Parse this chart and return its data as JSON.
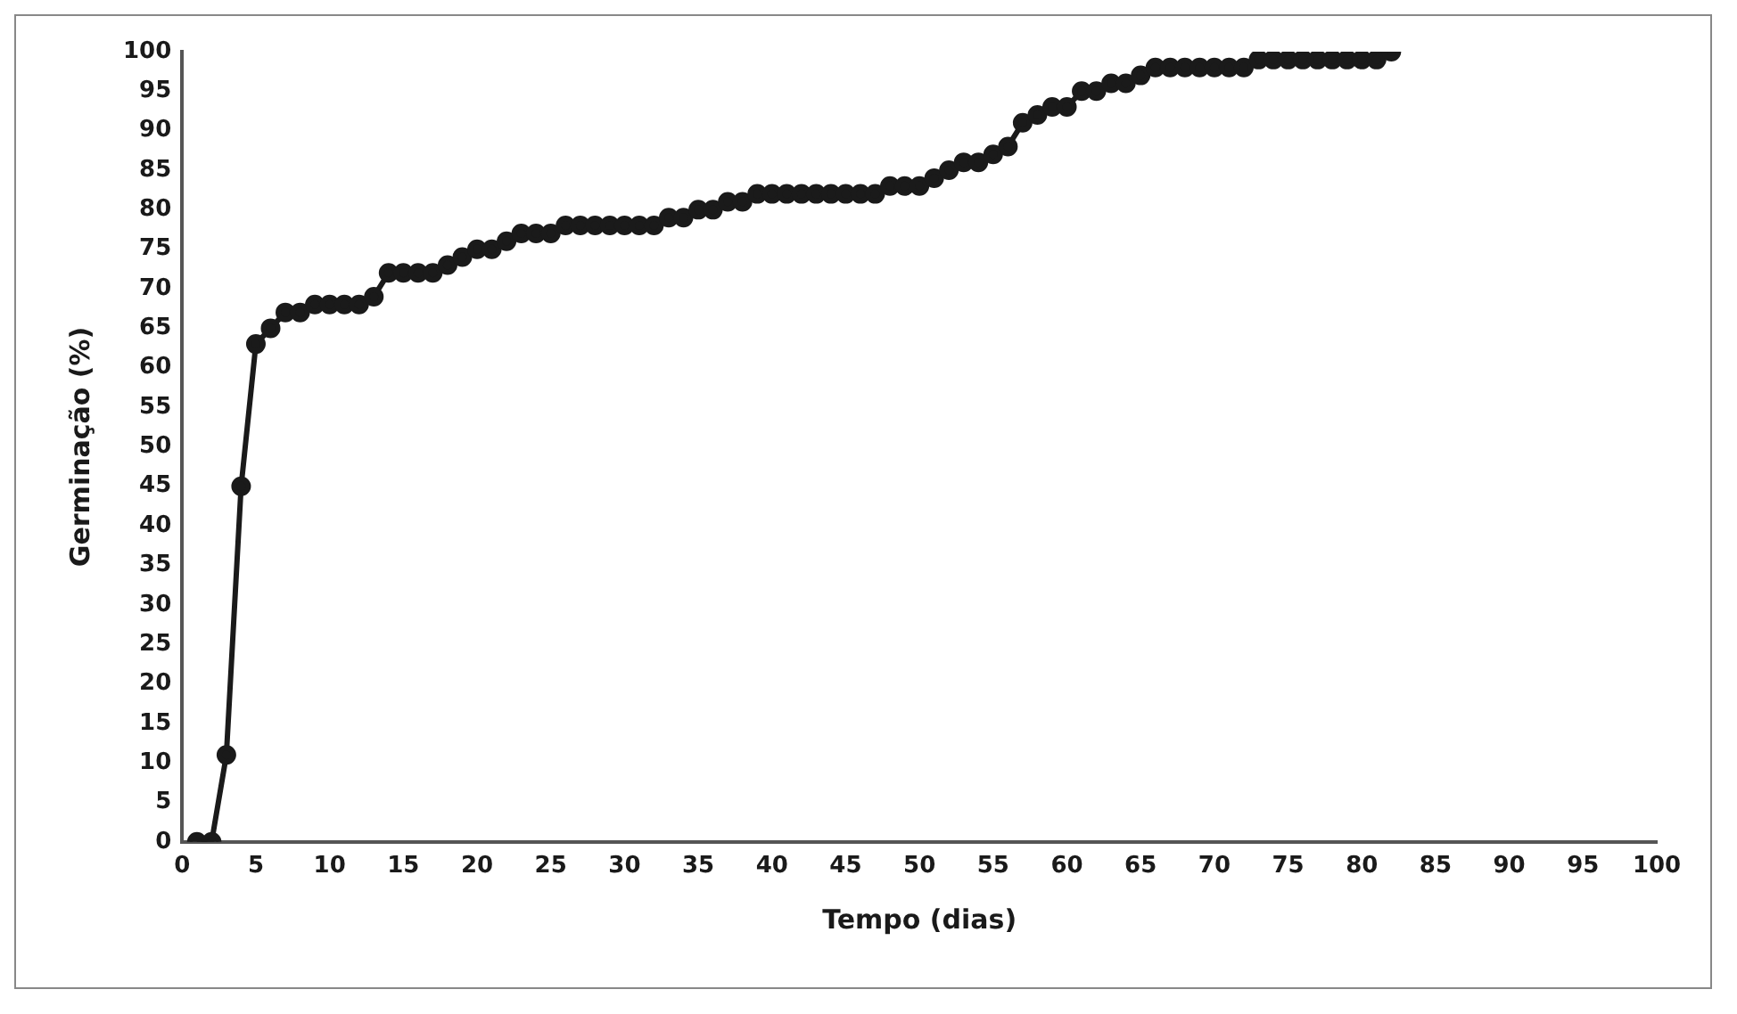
{
  "chart_data": {
    "type": "line",
    "xlabel": "Tempo (dias)",
    "ylabel": "Germinação (%)",
    "x": [
      1,
      2,
      3,
      4,
      5,
      6,
      7,
      8,
      9,
      10,
      11,
      12,
      13,
      14,
      15,
      16,
      17,
      18,
      19,
      20,
      21,
      22,
      23,
      24,
      25,
      26,
      27,
      28,
      29,
      30,
      31,
      32,
      33,
      34,
      35,
      36,
      37,
      38,
      39,
      40,
      41,
      42,
      43,
      44,
      45,
      46,
      47,
      48,
      49,
      50,
      51,
      52,
      53,
      54,
      55,
      56,
      57,
      58,
      59,
      60,
      61,
      62,
      63,
      64,
      65,
      66,
      67,
      68,
      69,
      70,
      71,
      72,
      73,
      74,
      75,
      76,
      77,
      78,
      79,
      80,
      81,
      82
    ],
    "series": [
      {
        "color": "#1a1a1a",
        "values": [
          0,
          0,
          11,
          45,
          63,
          65,
          67,
          67,
          68,
          68,
          68,
          68,
          69,
          72,
          72,
          72,
          72,
          73,
          74,
          75,
          75,
          76,
          77,
          77,
          77,
          78,
          78,
          78,
          78,
          78,
          78,
          78,
          79,
          79,
          80,
          80,
          81,
          81,
          82,
          82,
          82,
          82,
          82,
          82,
          82,
          82,
          82,
          83,
          83,
          83,
          84,
          85,
          86,
          86,
          87,
          88,
          91,
          92,
          93,
          93,
          95,
          95,
          96,
          96,
          97,
          98,
          98,
          98,
          98,
          98,
          98,
          98,
          99,
          99,
          99,
          99,
          99,
          99,
          99,
          99,
          99,
          100
        ]
      }
    ],
    "xlim": [
      0,
      100
    ],
    "xticks": [
      0,
      5,
      10,
      15,
      20,
      25,
      30,
      35,
      40,
      45,
      50,
      55,
      60,
      65,
      70,
      75,
      80,
      85,
      90,
      95,
      100
    ],
    "ylim": [
      0,
      100
    ],
    "yticks": [
      0,
      5,
      10,
      15,
      20,
      25,
      30,
      35,
      40,
      45,
      50,
      55,
      60,
      65,
      70,
      75,
      80,
      85,
      90,
      95,
      100
    ],
    "grid": false,
    "legend": false,
    "marker": "circle",
    "line_style": "solid"
  }
}
